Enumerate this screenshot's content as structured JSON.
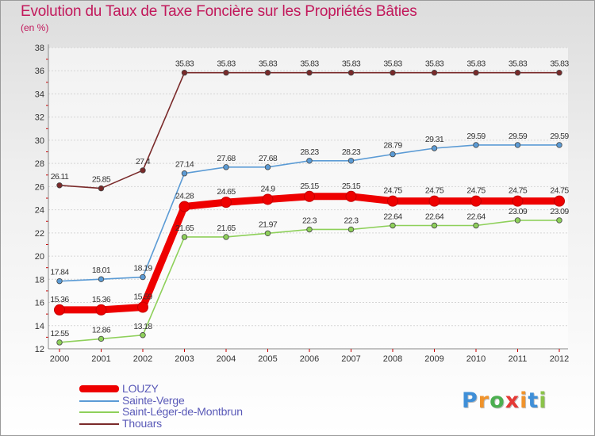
{
  "title": "Evolution du Taux de Taxe Foncière sur les Propriétés Bâties",
  "unit_label": "(en %)",
  "chart_data": {
    "type": "line",
    "title": "Evolution du Taux de Taxe Foncière sur les Propriétés Bâties",
    "ylabel": "(en %)",
    "xlabel": "",
    "ylim": [
      12,
      38
    ],
    "yticks": [
      12,
      14,
      16,
      18,
      20,
      22,
      24,
      26,
      28,
      30,
      32,
      34,
      36,
      38
    ],
    "categories": [
      "2000",
      "2001",
      "2002",
      "2003",
      "2004",
      "2005",
      "2006",
      "2007",
      "2008",
      "2009",
      "2010",
      "2011",
      "2012"
    ],
    "grid": "horizontal",
    "series": [
      {
        "name": "Thouars",
        "color": "#7a2a2a",
        "values": [
          26.11,
          25.85,
          27.4,
          35.83,
          35.83,
          35.83,
          35.83,
          35.83,
          35.83,
          35.83,
          35.83,
          35.83,
          35.83
        ],
        "labels": [
          "26.11",
          "25.85",
          "27.4",
          "35.83",
          "35.83",
          "35.83",
          "35.83",
          "35.83",
          "35.83",
          "35.83",
          "35.83",
          "35.83",
          "35.83"
        ]
      },
      {
        "name": "Sainte-Verge",
        "color": "#5b9bd5",
        "values": [
          17.84,
          18.01,
          18.19,
          27.14,
          27.68,
          27.68,
          28.23,
          28.23,
          28.79,
          29.31,
          29.59,
          29.59,
          29.59
        ],
        "labels": [
          "17.84",
          "18.01",
          "18.19",
          "27.14",
          "27.68",
          "27.68",
          "28.23",
          "28.23",
          "28.79",
          "29.31",
          "29.59",
          "29.59",
          "29.59"
        ]
      },
      {
        "name": "Saint-Léger-de-Montbrun",
        "color": "#8ed05a",
        "values": [
          12.55,
          12.86,
          13.18,
          21.65,
          21.65,
          21.97,
          22.3,
          22.3,
          22.64,
          22.64,
          22.64,
          23.09,
          23.09
        ],
        "labels": [
          "12.55",
          "12.86",
          "13.18",
          "21.65",
          "21.65",
          "21.97",
          "22.3",
          "22.3",
          "22.64",
          "22.64",
          "22.64",
          "23.09",
          "23.09"
        ]
      },
      {
        "name": "LOUZY",
        "color": "#ee0000",
        "values": [
          15.36,
          15.36,
          15.59,
          24.28,
          24.65,
          24.9,
          25.15,
          25.15,
          24.75,
          24.75,
          24.75,
          24.75,
          24.75
        ],
        "labels": [
          "15.36",
          "15.36",
          "15.59",
          "24.28",
          "24.65",
          "24.9",
          "25.15",
          "25.15",
          "24.75",
          "24.75",
          "24.75",
          "24.75",
          "24.75"
        ]
      }
    ],
    "legend": [
      "LOUZY",
      "Sainte-Verge",
      "Saint-Léger-de-Montbrun",
      "Thouars"
    ]
  },
  "legend_items": [
    {
      "label": "LOUZY",
      "color": "#ee0000"
    },
    {
      "label": "Sainte-Verge",
      "color": "#5b9bd5"
    },
    {
      "label": "Saint-Léger-de-Montbrun",
      "color": "#8ed05a"
    },
    {
      "label": "Thouars",
      "color": "#7a2a2a"
    }
  ],
  "logo": {
    "letters": [
      "P",
      "r",
      "o",
      "x",
      "i",
      "t",
      "i"
    ],
    "colors": [
      "#3f8fd8",
      "#f0932b",
      "#4caf50",
      "#e53935",
      "#f0932b",
      "#3f8fd8",
      "#8bc34a"
    ]
  }
}
